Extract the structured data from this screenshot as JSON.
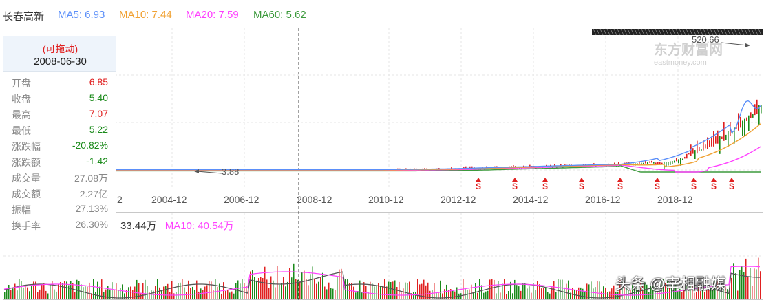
{
  "header": {
    "stock_name": "长春高新",
    "ma5": "MA5: 6.93",
    "ma10": "MA10: 7.44",
    "ma20": "MA20: 7.59",
    "ma60": "MA60: 5.62"
  },
  "colors": {
    "ma5": "#5b8ff9",
    "ma10": "#f0a030",
    "ma20": "#ff40ff",
    "ma60": "#3c9a3c",
    "up": "#e02020",
    "down": "#1a8a1a",
    "grid": "#e3e3e3"
  },
  "tooltip": {
    "drag_label": "(可拖动)",
    "date": "2008-06-30",
    "rows": [
      {
        "label": "开盘",
        "value": "6.85",
        "tone": "up"
      },
      {
        "label": "收盘",
        "value": "5.40",
        "tone": "down"
      },
      {
        "label": "最高",
        "value": "7.07",
        "tone": "up"
      },
      {
        "label": "最低",
        "value": "5.22",
        "tone": "down"
      },
      {
        "label": "涨跌幅",
        "value": "-20.82%",
        "tone": "down"
      },
      {
        "label": "涨跌额",
        "value": "-1.42",
        "tone": "down"
      },
      {
        "label": "成交量",
        "value": "27.08万",
        "tone": "neutral"
      },
      {
        "label": "成交额",
        "value": "2.27亿",
        "tone": "neutral"
      },
      {
        "label": "振幅",
        "value": "27.13%",
        "tone": "neutral"
      },
      {
        "label": "换手率",
        "value": "26.30%",
        "tone": "neutral"
      }
    ]
  },
  "x_axis": {
    "labels": [
      "2",
      "2004-12",
      "2006-12",
      "2008-12",
      "2010-12",
      "2012-12",
      "2014-12",
      "2016-12",
      "2018-12"
    ]
  },
  "price_markers": {
    "max_label": "520.66",
    "min_label": "3.88"
  },
  "volume_header": {
    "vol_value": "33.44万",
    "ma10": "MA10: 40.54万"
  },
  "watermark": "头条 @宰相融媒",
  "logo": {
    "text": "东方财富网",
    "sub": "eastmoney.com"
  },
  "dividend_marker_icon": "dividend-s-arrow-icon",
  "chart_data": {
    "type": "candlestick",
    "title": "长春高新",
    "x_tick_labels": [
      "2",
      "2004-12",
      "2006-12",
      "2008-12",
      "2010-12",
      "2012-12",
      "2014-12",
      "2016-12",
      "2018-12"
    ],
    "series": [
      {
        "name": "MA5",
        "last": 6.93
      },
      {
        "name": "MA10",
        "last": 7.44
      },
      {
        "name": "MA20",
        "last": 7.59
      },
      {
        "name": "MA60",
        "last": 5.62
      }
    ],
    "annotations": {
      "max": 520.66,
      "min": 3.88
    },
    "selected_bar": {
      "date": "2008-06-30",
      "open": 6.85,
      "close": 5.4,
      "high": 7.07,
      "low": 5.22
    },
    "volume": {
      "current": "33.44万",
      "ma10": "40.54万"
    }
  }
}
